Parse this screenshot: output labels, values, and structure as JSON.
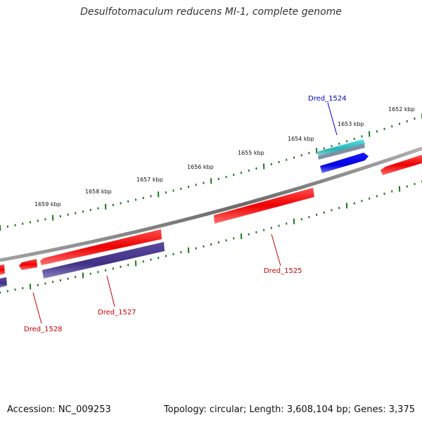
{
  "title": "Desulfotomaculum reducens MI-1, complete genome",
  "footer": {
    "accession": "Accession: NC_009253",
    "summary": "Topology: circular; Length: 3,608,104 bp; Genes: 3,375"
  },
  "kbp_labels": [
    "1652 kbp",
    "1653 kbp",
    "1654 kbp",
    "1655 kbp",
    "1656 kbp",
    "1657 kbp",
    "1658 kbp",
    "1659 kbp"
  ],
  "gene_labels": [
    {
      "name": "Dred_1524",
      "color": "#0000cc"
    },
    {
      "name": "Dred_1525",
      "color": "#cc0000"
    },
    {
      "name": "Dred_1527",
      "color": "#cc0000"
    },
    {
      "name": "Dred_1528",
      "color": "#cc0000"
    }
  ],
  "colors": {
    "backbone": "#808080",
    "forward_gene": "#ff0000",
    "reverse_gene": "#4b3b8f",
    "highlight_gene": "#0000ff",
    "highlight_rna": "#2ec4c4",
    "tick": "#1a7a1a"
  }
}
